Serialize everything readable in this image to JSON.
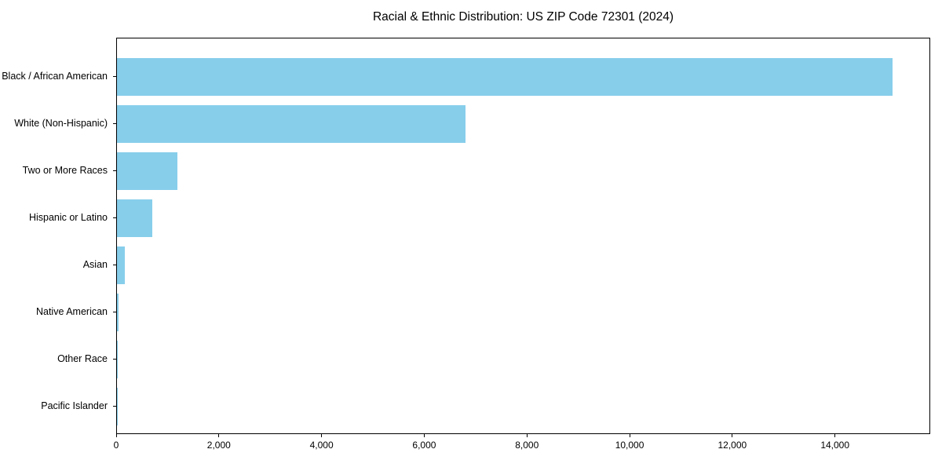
{
  "figure": {
    "background": "#FFFFFF",
    "axis_color": "#000000"
  },
  "chart_data": {
    "type": "bar",
    "orientation": "horizontal",
    "title": "Racial & Ethnic Distribution: US ZIP Code 72301 (2024)",
    "xlabel": "",
    "ylabel": "",
    "categories": [
      "Black / African American",
      "White (Non-Hispanic)",
      "Two or More Races",
      "Hispanic or Latino",
      "Asian",
      "Native American",
      "Other Race",
      "Pacific Islander"
    ],
    "values": [
      15100,
      6790,
      1170,
      690,
      150,
      25,
      10,
      5
    ],
    "bar_color": "#87CEEB",
    "xlim": [
      0,
      15855
    ],
    "xticks": [
      0,
      2000,
      4000,
      6000,
      8000,
      10000,
      12000,
      14000
    ],
    "xtick_labels": [
      "0",
      "2,000",
      "4,000",
      "6,000",
      "8,000",
      "10,000",
      "12,000",
      "14,000"
    ],
    "grid": false,
    "legend": null,
    "sort_order": "descending",
    "largest_category_on_top": true
  }
}
